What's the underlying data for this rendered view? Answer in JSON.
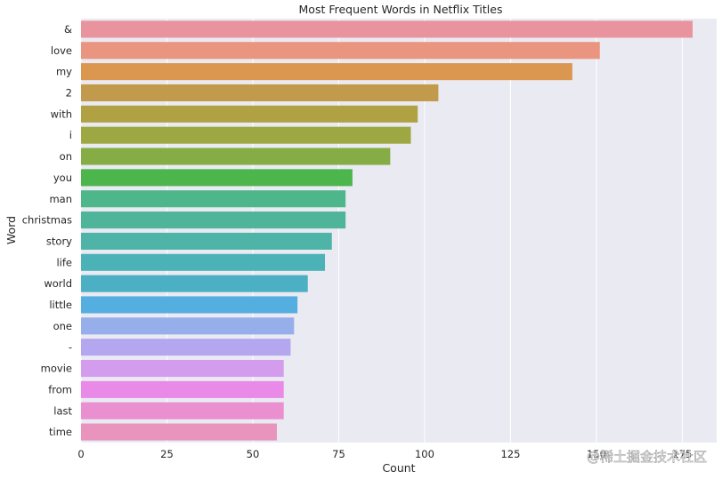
{
  "chart_data": {
    "type": "bar",
    "orientation": "horizontal",
    "title": "Most Frequent Words in Netflix Titles",
    "xlabel": "Count",
    "ylabel": "Word",
    "xlim": [
      0,
      185
    ],
    "xticks": [
      0,
      25,
      50,
      75,
      100,
      125,
      150,
      175
    ],
    "grid": true,
    "categories": [
      "&",
      "love",
      "my",
      "2",
      "with",
      "i",
      "on",
      "you",
      "man",
      "christmas",
      "story",
      "life",
      "world",
      "little",
      "one",
      "-",
      "movie",
      "from",
      "last",
      "time"
    ],
    "values": [
      178,
      151,
      143,
      104,
      98,
      96,
      90,
      79,
      77,
      77,
      73,
      71,
      66,
      63,
      62,
      61,
      59,
      59,
      59,
      57
    ],
    "colors": [
      "#e8939d",
      "#e99580",
      "#db9650",
      "#c19b4b",
      "#b0a143",
      "#9ea843",
      "#86ad45",
      "#4cb54c",
      "#4db68a",
      "#4eb59a",
      "#4db4a7",
      "#4bb3b8",
      "#4bb0c4",
      "#54aee0",
      "#96aeea",
      "#b5a7ef",
      "#d49ced",
      "#ea8ae8",
      "#ea8fd0",
      "#e994bd"
    ]
  },
  "watermark": "@稀土掘金技术社区"
}
